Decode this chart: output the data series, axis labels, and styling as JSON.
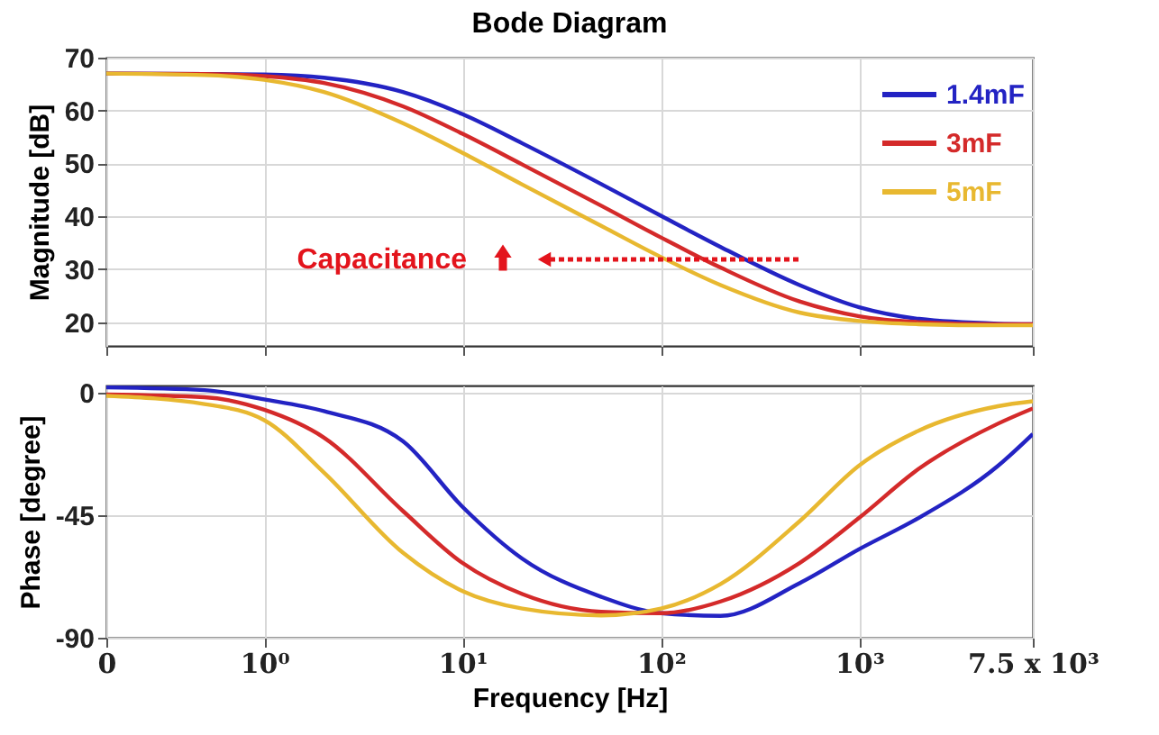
{
  "chart_data": [
    {
      "type": "line",
      "title": "Bode Diagram",
      "ylabel": "Magnitude [dB]",
      "log": "x",
      "grid": true,
      "legend": "top right",
      "line_style": "solid",
      "tick_labels": "y",
      "x": [
        0.16,
        0.5,
        1,
        2,
        5,
        10,
        20,
        50,
        100,
        200,
        500,
        1000,
        2000,
        5000,
        7500
      ],
      "xlim": [
        0.16,
        7500
      ],
      "xticks": [
        {
          "value": 0.16,
          "label": null
        },
        {
          "value": 1,
          "label": null
        },
        {
          "value": 10,
          "label": null
        },
        {
          "value": 100,
          "label": null
        },
        {
          "value": 1000,
          "label": null
        },
        {
          "value": 7500,
          "label": null
        }
      ],
      "ylim": [
        15.5,
        70
      ],
      "yticks": [
        20,
        30,
        40,
        50,
        60,
        70
      ],
      "annotations": [
        "Capacitance"
      ],
      "series": [
        {
          "name": "1.4mF",
          "color": "#2323c3",
          "values": [
            67.0,
            66.9,
            66.8,
            66.2,
            63.5,
            59.3,
            53.8,
            46.1,
            40.1,
            34.2,
            27.0,
            22.8,
            20.6,
            19.7,
            19.6
          ]
        },
        {
          "name": "3mF",
          "color": "#d42a2a",
          "values": [
            67.0,
            66.9,
            66.5,
            65.2,
            60.8,
            55.6,
            49.8,
            42.0,
            36.0,
            30.3,
            23.9,
            21.1,
            20.0,
            19.6,
            19.6
          ]
        },
        {
          "name": "5mF",
          "color": "#e8b830",
          "values": [
            67.0,
            66.7,
            65.8,
            63.5,
            57.6,
            52.0,
            46.0,
            38.2,
            32.3,
            27.0,
            21.8,
            20.2,
            19.6,
            19.4,
            19.4
          ]
        }
      ]
    },
    {
      "type": "line",
      "xlabel": "Frequency [Hz]",
      "ylabel": "Phase [degree]",
      "log": "x",
      "grid": true,
      "line_style": "solid",
      "x": [
        0.16,
        0.5,
        1,
        2,
        5,
        10,
        20,
        50,
        100,
        200,
        500,
        1000,
        2000,
        5000,
        7500
      ],
      "xlim": [
        0.16,
        7500
      ],
      "xticks": [
        {
          "value": 0.16,
          "label": "0"
        },
        {
          "value": 1,
          "label": "10⁰"
        },
        {
          "value": 10,
          "label": "10¹"
        },
        {
          "value": 100,
          "label": "10²"
        },
        {
          "value": 1000,
          "label": "10³"
        },
        {
          "value": 7500,
          "label": "7.5 x 10³"
        }
      ],
      "ylim": [
        -90,
        2.5
      ],
      "yticks": [
        0,
        -45,
        -90
      ],
      "series": [
        {
          "color": "#2323c3",
          "values": [
            1.8,
            0.8,
            -2.6,
            -6.9,
            -17.9,
            -42,
            -61,
            -75,
            -81,
            -82,
            -70,
            -57.5,
            -46,
            -27,
            -15.3
          ]
        },
        {
          "color": "#d42a2a",
          "values": [
            -0.8,
            -1.8,
            -6.4,
            -16.6,
            -43.5,
            -62.6,
            -74,
            -80.5,
            -81,
            -76.7,
            -62.6,
            -46,
            -28,
            -11.5,
            -5.9
          ]
        },
        {
          "color": "#e8b830",
          "values": [
            -1.3,
            -4.3,
            -10.2,
            -29.4,
            -58.8,
            -72.9,
            -79.3,
            -81.8,
            -79.3,
            -70.3,
            -47.3,
            -26.8,
            -14,
            -5.1,
            -3.3
          ]
        }
      ]
    }
  ]
}
